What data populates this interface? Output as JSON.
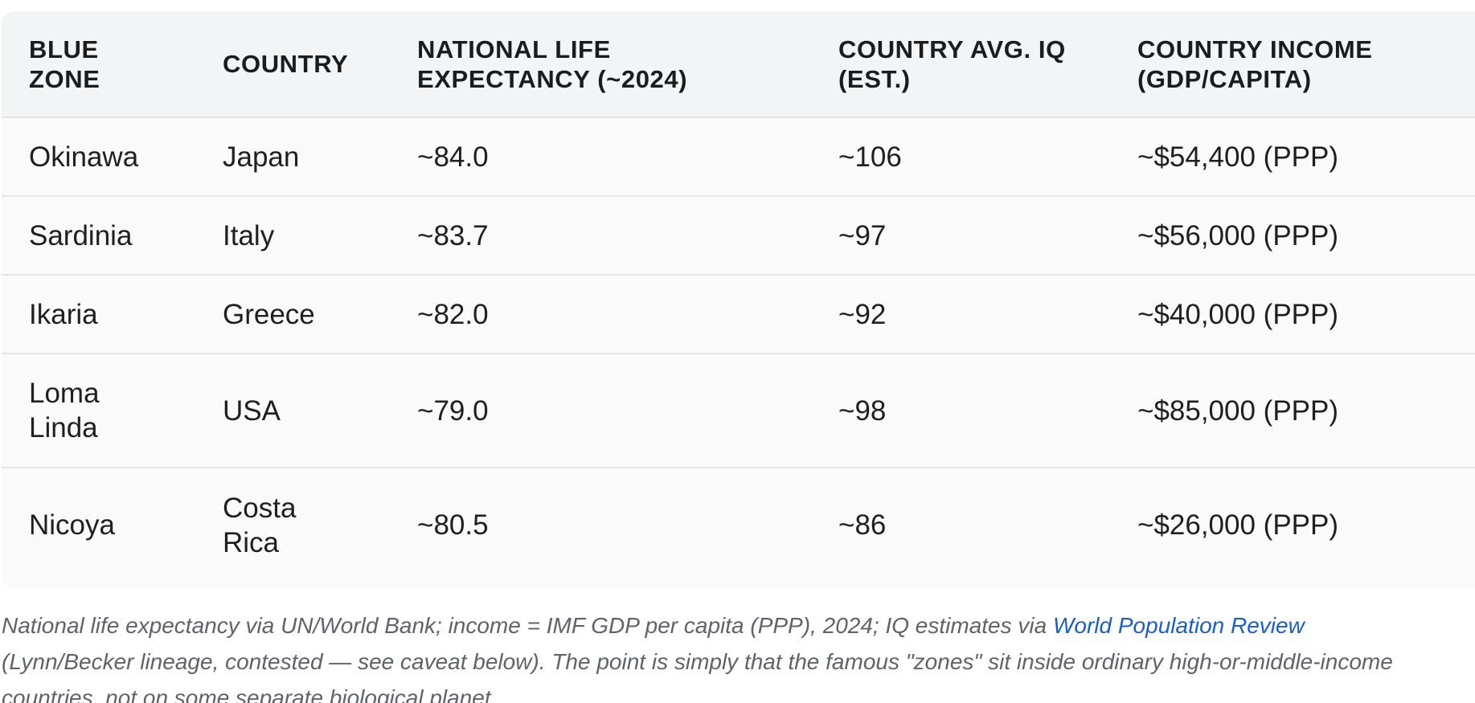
{
  "table": {
    "headers": [
      [
        "BLUE",
        "ZONE"
      ],
      [
        "COUNTRY"
      ],
      [
        "NATIONAL LIFE",
        "EXPECTANCY (~2024)"
      ],
      [
        "COUNTRY AVG. IQ",
        "(EST.)"
      ],
      [
        "COUNTRY INCOME",
        "(GDP/CAPITA)"
      ]
    ],
    "rows": [
      {
        "zone": [
          "Okinawa"
        ],
        "country": [
          "Japan"
        ],
        "life": "~84.0",
        "iq": "~106",
        "income": "~$54,400 (PPP)"
      },
      {
        "zone": [
          "Sardinia"
        ],
        "country": [
          "Italy"
        ],
        "life": "~83.7",
        "iq": "~97",
        "income": "~$56,000 (PPP)"
      },
      {
        "zone": [
          "Ikaria"
        ],
        "country": [
          "Greece"
        ],
        "life": "~82.0",
        "iq": "~92",
        "income": "~$40,000 (PPP)"
      },
      {
        "zone": [
          "Loma",
          "Linda"
        ],
        "country": [
          "USA"
        ],
        "life": "~79.0",
        "iq": "~98",
        "income": "~$85,000 (PPP)"
      },
      {
        "zone": [
          "Nicoya"
        ],
        "country": [
          "Costa",
          "Rica"
        ],
        "life": "~80.5",
        "iq": "~86",
        "income": "~$26,000 (PPP)"
      }
    ]
  },
  "footnote": {
    "line1_text": "National life expectancy via UN/World Bank; income = IMF GDP per capita (PPP), 2024; IQ estimates via ",
    "link_text": "World Population Review",
    "line2_text": "(Lynn/Becker lineage, contested — see caveat below). The point is simply that the famous \"zones\" sit inside ordinary high-or-middle-income",
    "line3_text": "countries, not on some separate biological planet."
  },
  "colors": {
    "header_bg": "#f3f4f6",
    "table_bg": "#fafafa",
    "link": "#1a5fc9",
    "footnote_text": "#5f6368"
  }
}
